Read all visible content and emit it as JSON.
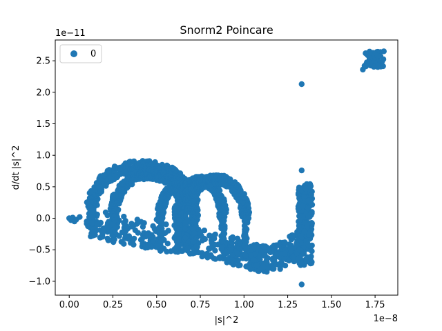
{
  "chart_data": {
    "type": "scatter",
    "title": "Snorm2 Poincare",
    "xlabel": "|s|^2",
    "ylabel": "d/dt |s|^2",
    "x_offset_text": "1e−8",
    "y_offset_text": "1e−11",
    "x_scale_exponent": -8,
    "y_scale_exponent": -11,
    "xlim": [
      -0.08,
      1.88
    ],
    "ylim": [
      -1.22,
      2.83
    ],
    "x_ticks": [
      0.0,
      0.25,
      0.5,
      0.75,
      1.0,
      1.25,
      1.5,
      1.75
    ],
    "x_tick_labels": [
      "0.00",
      "0.25",
      "0.50",
      "0.75",
      "1.00",
      "1.25",
      "1.50",
      "1.75"
    ],
    "y_ticks": [
      -1.0,
      -0.5,
      0.0,
      0.5,
      1.0,
      1.5,
      2.0,
      2.5
    ],
    "y_tick_labels": [
      "−1.0",
      "−0.5",
      "0.0",
      "0.5",
      "1.0",
      "1.5",
      "2.0",
      "2.5"
    ],
    "grid": false,
    "legend": {
      "position": "top-left",
      "entries": [
        "0"
      ]
    },
    "series": [
      {
        "name": "0",
        "color": "#1f77b4",
        "points": [
          [
            0.0,
            0.0
          ],
          [
            0.02,
            0.01
          ],
          [
            0.04,
            -0.02
          ],
          [
            0.06,
            0.02
          ],
          [
            0.03,
            -0.05
          ],
          [
            0.01,
            -0.03
          ],
          [
            0.1,
            -0.05
          ],
          [
            0.13,
            -0.08
          ],
          [
            0.16,
            -0.1
          ],
          [
            0.2,
            -0.18
          ],
          [
            1.33,
            2.13
          ],
          [
            1.33,
            0.76
          ],
          [
            1.33,
            -1.05
          ],
          [
            1.7,
            2.45
          ],
          [
            1.72,
            2.52
          ],
          [
            1.75,
            2.6
          ],
          [
            1.78,
            2.64
          ],
          [
            1.8,
            2.65
          ],
          [
            1.68,
            2.36
          ],
          [
            1.76,
            2.48
          ],
          [
            1.73,
            2.55
          ]
        ],
        "loops": [
          {
            "cx": 0.42,
            "cy": 0.19,
            "rx": 0.29,
            "ry": 0.64,
            "start": 180,
            "end": 360,
            "thick": 0.06
          },
          {
            "cx": 0.455,
            "cy": 0.08,
            "rx": 0.2,
            "ry": 0.62,
            "start": 180,
            "end": 360,
            "thick": 0.05
          },
          {
            "cx": 0.62,
            "cy": -0.02,
            "rx": 0.1,
            "ry": 0.52,
            "start": 180,
            "end": 360,
            "thick": 0.04
          },
          {
            "cx": 0.75,
            "cy": 0.0,
            "rx": 0.13,
            "ry": 0.6,
            "start": 180,
            "end": 360,
            "thick": 0.045
          },
          {
            "cx": 0.84,
            "cy": 0.0,
            "rx": 0.17,
            "ry": 0.62,
            "start": 200,
            "end": 360,
            "thick": 0.05
          }
        ],
        "band": {
          "x": [
            0.1,
            0.3,
            0.5,
            0.7,
            0.9,
            1.0,
            1.1,
            1.2,
            1.3,
            1.36
          ],
          "y": [
            -0.05,
            -0.18,
            -0.3,
            -0.35,
            -0.5,
            -0.55,
            -0.65,
            -0.6,
            -0.45,
            -0.2
          ],
          "spread": 0.22
        },
        "right_column": {
          "x_min": 1.31,
          "x_max": 1.39,
          "y_min": -0.75,
          "y_max": 0.55
        }
      }
    ]
  }
}
